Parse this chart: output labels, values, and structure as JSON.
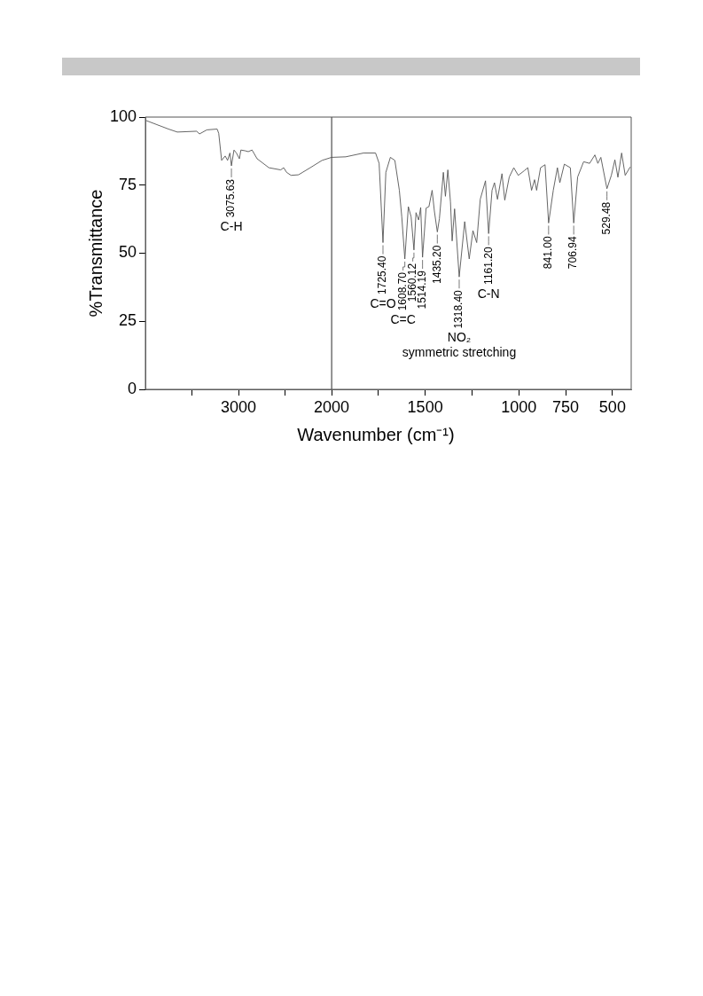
{
  "chart_data": [
    {
      "type": "line",
      "xlabel": "Wavenumber (cm⁻¹)",
      "ylabel": "%Transmittance",
      "xlim": [
        4000,
        2000
      ],
      "ylim": [
        0,
        100
      ],
      "xticks": [
        {
          "value": 3500,
          "label": null
        },
        3000,
        {
          "value": 2500,
          "label": null
        },
        2000
      ],
      "yticks": [
        0,
        25,
        50,
        75,
        100
      ],
      "grid": false,
      "legend": false,
      "marker": "none",
      "x": [
        3990,
        3752,
        3657,
        3450,
        3419,
        3340,
        3229,
        3212,
        3181,
        3143,
        3117,
        3092,
        3075.63,
        3048,
        3022,
        2990,
        2974,
        2926,
        2895,
        2854,
        2800,
        2673,
        2546,
        2514,
        2483,
        2435,
        2355,
        2229,
        2102,
        2000
      ],
      "series": [
        {
          "color": "#555555",
          "values": [
            98.7,
            95.6,
            94.5,
            94.8,
            93.8,
            95.3,
            95.6,
            94.0,
            84.1,
            85.7,
            84.1,
            86.8,
            82.1,
            87.9,
            86.8,
            84.7,
            87.9,
            87.6,
            87.3,
            87.9,
            84.7,
            81.4,
            80.6,
            81.4,
            79.7,
            78.6,
            78.8,
            81.4,
            84.1,
            85.2
          ]
        }
      ],
      "annotations": [
        {
          "text": "3075.63",
          "x": 3075.63,
          "y": 82.1
        },
        "C-H"
      ]
    },
    {
      "type": "line",
      "xlim": [
        2000,
        400
      ],
      "ylim": [
        0,
        100
      ],
      "tick_labels": "x",
      "xticks": [
        {
          "value": 1750,
          "label": null
        },
        1500,
        {
          "value": 1250,
          "label": null
        },
        1000,
        750,
        500
      ],
      "grid": false,
      "legend": false,
      "marker": "none",
      "x": [
        2000,
        1924,
        1829,
        1765,
        1746,
        1725.4,
        1710,
        1686,
        1662,
        1638,
        1625,
        1608.7,
        1590,
        1575,
        1560.12,
        1549,
        1535,
        1524,
        1514.19,
        1495,
        1480,
        1463,
        1451,
        1435.2,
        1424,
        1403,
        1392,
        1379,
        1365,
        1356,
        1343,
        1318.4,
        1289,
        1265,
        1245,
        1225,
        1206,
        1178,
        1161.2,
        1143,
        1130,
        1114,
        1090,
        1075,
        1051,
        1027,
        1003,
        971,
        952,
        932,
        916,
        905,
        884,
        860,
        841,
        816,
        794,
        781,
        757,
        725,
        706.94,
        686,
        654,
        622,
        594,
        578,
        562,
        529.48,
        506,
        487,
        471,
        451,
        432,
        405
      ],
      "series": [
        {
          "color": "#555555",
          "values": [
            85.2,
            85.4,
            86.8,
            86.8,
            83.0,
            53.9,
            79.7,
            85.2,
            84.1,
            73.1,
            63.3,
            47.9,
            67.1,
            63.3,
            51.2,
            64.9,
            62.2,
            66.8,
            48.5,
            66.6,
            67.1,
            73.1,
            65.5,
            57.8,
            62.7,
            79.7,
            70.9,
            80.6,
            68.8,
            54.5,
            66.3,
            41.3,
            61.6,
            47.9,
            58.3,
            53.9,
            69.8,
            76.6,
            57.2,
            73.1,
            75.9,
            69.8,
            79.2,
            69.5,
            78.0,
            81.4,
            78.6,
            80.3,
            81.4,
            73.1,
            77.0,
            73.1,
            81.4,
            82.5,
            61.1,
            73.1,
            81.4,
            75.9,
            82.7,
            81.4,
            61.1,
            78.0,
            83.6,
            83.0,
            86.1,
            83.0,
            85.2,
            73.7,
            78.6,
            84.3,
            77.9,
            86.8,
            78.6,
            81.7
          ]
        }
      ],
      "annotations": [
        {
          "text": "1725.40",
          "x": 1725.4,
          "y": 53.9
        },
        "C=O",
        {
          "text": "1608.70",
          "x": 1608.7,
          "y": 47.9
        },
        "C=C",
        {
          "text": "1560.12",
          "x": 1560.12,
          "y": 51.2
        },
        {
          "text": "1514.19",
          "x": 1514.19,
          "y": 48.5
        },
        {
          "text": "1435.20",
          "x": 1435.2,
          "y": 57.8
        },
        {
          "text": "1318.40",
          "x": 1318.4,
          "y": 41.3
        },
        "NO₂",
        "symmetric stretching",
        {
          "text": "1161.20",
          "x": 1161.2,
          "y": 57.2
        },
        "C-N",
        {
          "text": "841.00",
          "x": 841,
          "y": 61.1
        },
        {
          "text": "706.94",
          "x": 706.94,
          "y": 61.1
        },
        {
          "text": "529.48",
          "x": 529.48,
          "y": 73.7
        }
      ]
    }
  ]
}
